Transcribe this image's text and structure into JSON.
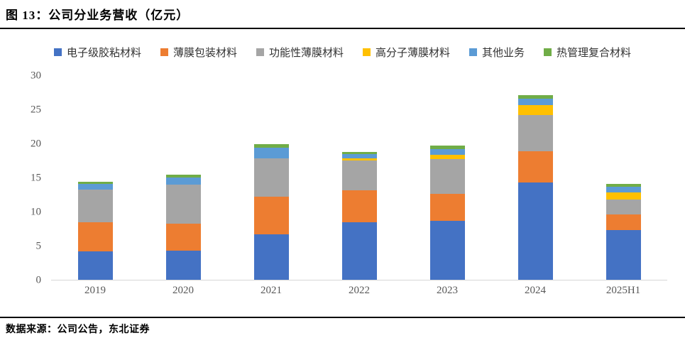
{
  "header": {
    "title": "图 13：公司分业务营收（亿元）"
  },
  "footer": {
    "source": "数据来源：公司公告，东北证券"
  },
  "colors": {
    "axis_line": "#d6d6d6",
    "axis_text": "#595959",
    "rule": "#000000"
  },
  "chart_data": {
    "type": "bar",
    "stacked": true,
    "title": "图 13：公司分业务营收（亿元）",
    "categories": [
      "2019",
      "2020",
      "2021",
      "2022",
      "2023",
      "2024",
      "2025H1"
    ],
    "series": [
      {
        "name": "电子级胶粘材料",
        "color": "#4472C4",
        "values": [
          4.2,
          4.3,
          6.7,
          8.4,
          8.6,
          14.3,
          7.3
        ]
      },
      {
        "name": "薄膜包装材料",
        "color": "#ED7D31",
        "values": [
          4.2,
          3.9,
          5.5,
          4.7,
          4.0,
          4.6,
          2.3
        ]
      },
      {
        "name": "功能性薄膜材料",
        "color": "#A5A5A5",
        "values": [
          4.8,
          5.8,
          5.6,
          4.45,
          5.15,
          5.3,
          2.2
        ]
      },
      {
        "name": "高分子薄膜材料",
        "color": "#FFC000",
        "values": [
          0,
          0,
          0,
          0.3,
          0.6,
          1.4,
          1.05
        ]
      },
      {
        "name": "其他业务",
        "color": "#5B9BD5",
        "values": [
          0.85,
          1.0,
          1.55,
          0.6,
          0.85,
          1.0,
          0.85
        ]
      },
      {
        "name": "热管理复合材料",
        "color": "#70AD47",
        "values": [
          0.35,
          0.45,
          0.5,
          0.35,
          0.5,
          0.45,
          0.4
        ]
      }
    ],
    "ylim": [
      0,
      30
    ],
    "yticks": [
      0,
      5,
      10,
      15,
      20,
      25,
      30
    ],
    "xlabel": "",
    "ylabel": "",
    "grid": false,
    "legend_position": "top"
  }
}
